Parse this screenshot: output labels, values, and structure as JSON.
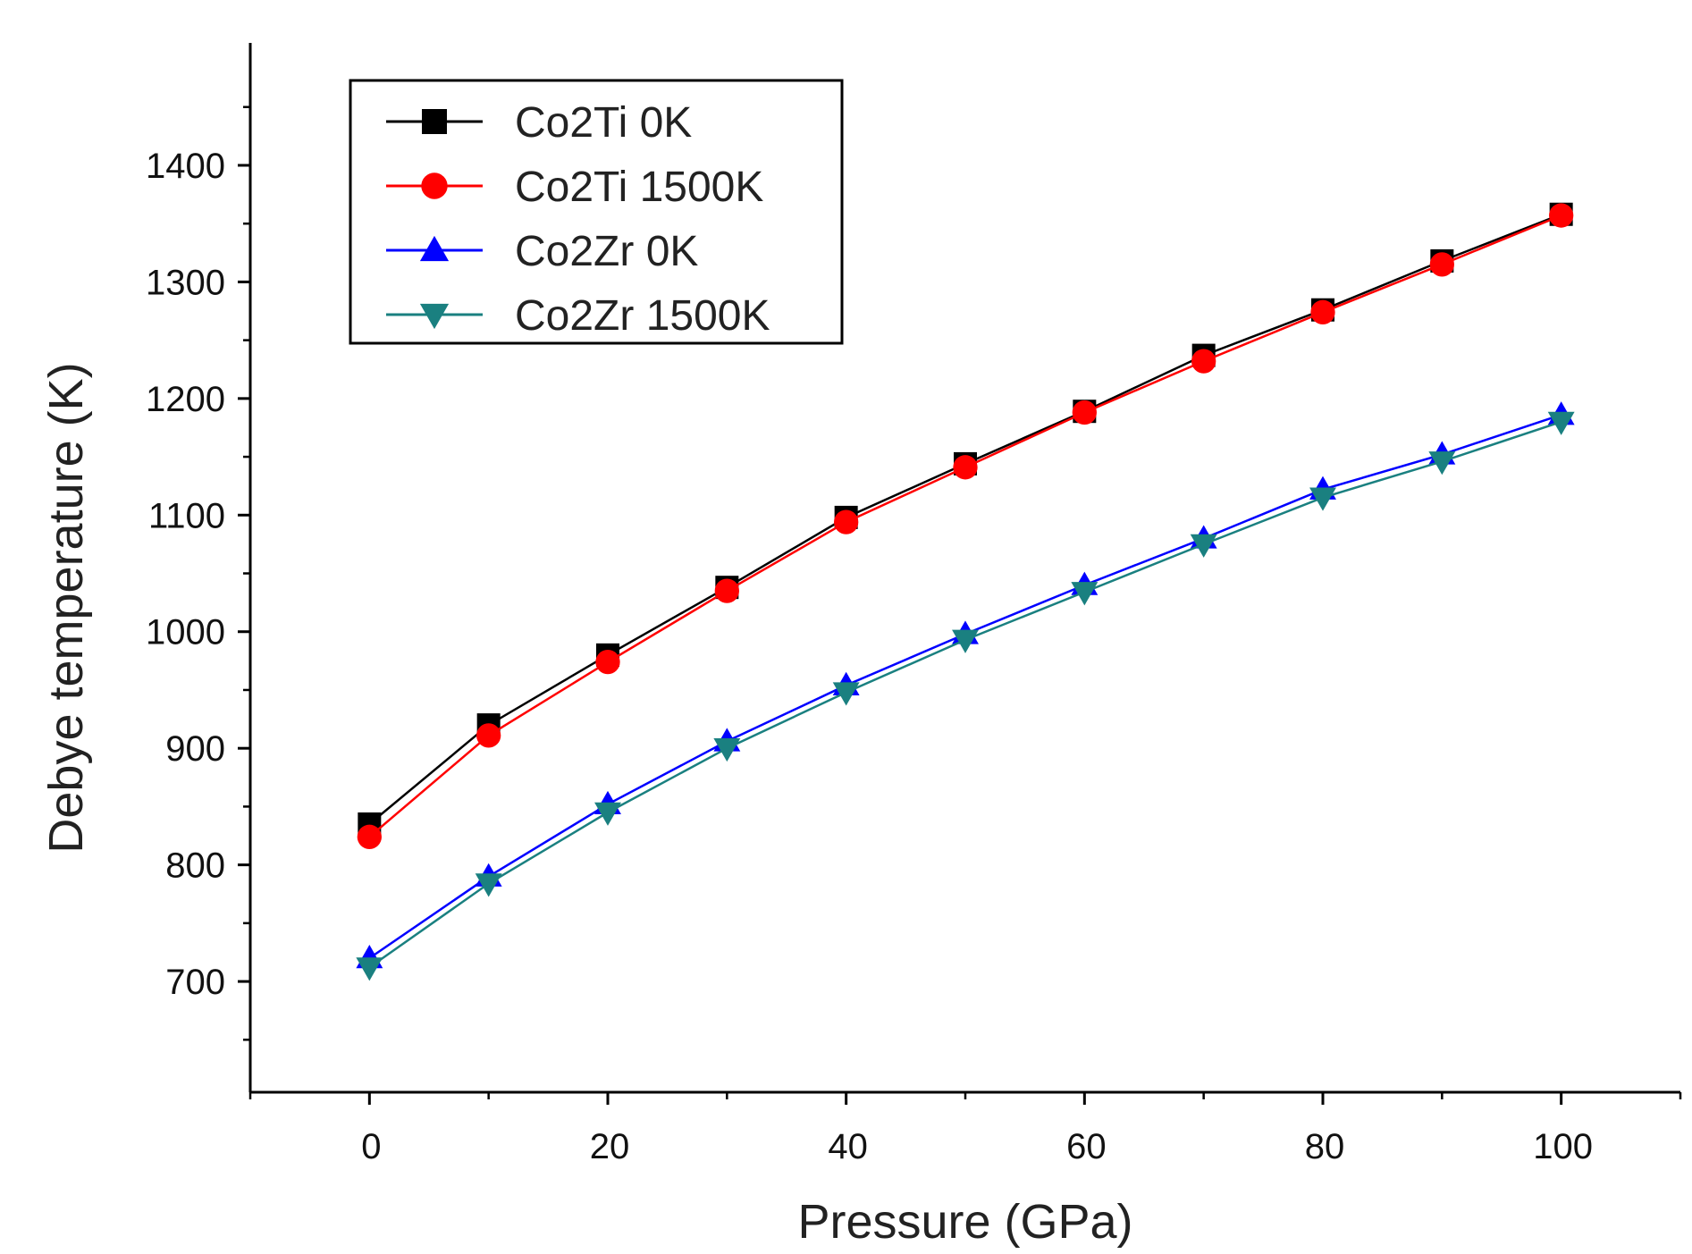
{
  "chart_data": {
    "type": "line",
    "title": "",
    "xlabel": "Pressure (GPa)",
    "ylabel": "Debye temperature (K)",
    "xlim": [
      -10,
      110
    ],
    "ylim": [
      605,
      1505
    ],
    "grid": false,
    "legend_position": "top-left",
    "x": [
      0,
      10,
      20,
      30,
      40,
      50,
      60,
      70,
      80,
      90,
      100
    ],
    "x_ticks": [
      0,
      20,
      40,
      60,
      80,
      100
    ],
    "x_tick_labels": [
      "0",
      "20",
      "40",
      "60",
      "80",
      "100"
    ],
    "y_ticks": [
      700,
      800,
      900,
      1000,
      1100,
      1200,
      1300,
      1400
    ],
    "y_tick_labels": [
      "700",
      "800",
      "900",
      "1000",
      "1100",
      "1200",
      "1300",
      "1400"
    ],
    "series": [
      {
        "name": "Co2Ti 0K",
        "color": "#000000",
        "marker": "square",
        "values": [
          835,
          920,
          980,
          1038,
          1098,
          1144,
          1189,
          1237,
          1276,
          1318,
          1358
        ]
      },
      {
        "name": "Co2Ti 1500K",
        "color": "#ff0000",
        "marker": "circle",
        "values": [
          824,
          911,
          974,
          1035,
          1094,
          1141,
          1188,
          1232,
          1274,
          1315,
          1357
        ]
      },
      {
        "name": "Co2Zr 0K",
        "color": "#0000ff",
        "marker": "triangle-up",
        "values": [
          720,
          790,
          852,
          906,
          954,
          998,
          1040,
          1080,
          1122,
          1152,
          1186
        ]
      },
      {
        "name": "Co2Zr 1500K",
        "color": "#1a8080",
        "marker": "triangle-down",
        "values": [
          712,
          784,
          845,
          900,
          948,
          993,
          1034,
          1075,
          1115,
          1146,
          1180
        ]
      }
    ]
  }
}
